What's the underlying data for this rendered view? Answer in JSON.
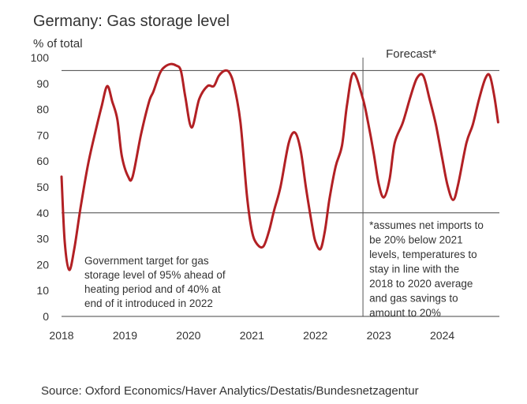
{
  "chart_data": {
    "type": "line",
    "title": "Germany: Gas storage level",
    "ylabel": "% of total",
    "ylim": [
      0,
      100
    ],
    "yticks": [
      0,
      10,
      20,
      30,
      40,
      50,
      60,
      70,
      80,
      90,
      100
    ],
    "xlim": [
      2018,
      2024.9
    ],
    "xtick_labels": [
      "2018",
      "2019",
      "2020",
      "2021",
      "2022",
      "2023",
      "2024"
    ],
    "reference_lines": [
      {
        "name": "target-95",
        "value": 95
      },
      {
        "name": "target-40",
        "value": 40
      }
    ],
    "forecast_start": 2022.75,
    "forecast_label": "Forecast*",
    "series": [
      {
        "name": "Gas storage level",
        "color": "#b22024",
        "x": [
          2018.0,
          2018.05,
          2018.12,
          2018.2,
          2018.3,
          2018.42,
          2018.55,
          2018.63,
          2018.72,
          2018.8,
          2018.88,
          2018.95,
          2019.05,
          2019.12,
          2019.25,
          2019.38,
          2019.45,
          2019.55,
          2019.63,
          2019.72,
          2019.8,
          2019.88,
          2019.95,
          2020.05,
          2020.17,
          2020.3,
          2020.4,
          2020.48,
          2020.58,
          2020.65,
          2020.72,
          2020.82,
          2020.92,
          2021.0,
          2021.08,
          2021.18,
          2021.27,
          2021.35,
          2021.45,
          2021.58,
          2021.68,
          2021.77,
          2021.85,
          2021.95,
          2022.0,
          2022.08,
          2022.15,
          2022.22,
          2022.32,
          2022.42,
          2022.5,
          2022.6,
          2022.75,
          2022.83,
          2022.92,
          2023.0,
          2023.08,
          2023.17,
          2023.25,
          2023.38,
          2023.5,
          2023.6,
          2023.7,
          2023.8,
          2023.9,
          2024.0,
          2024.08,
          2024.17,
          2024.25,
          2024.38,
          2024.48,
          2024.58,
          2024.68,
          2024.75,
          2024.82,
          2024.88
        ],
        "values": [
          54,
          29,
          18,
          26,
          42,
          59,
          73,
          81,
          89,
          83,
          76,
          62,
          54,
          54,
          70,
          83,
          87,
          94,
          96.5,
          97.5,
          97,
          95,
          85,
          73,
          84,
          89,
          89,
          93,
          95,
          94,
          89,
          75,
          47,
          33,
          28,
          27,
          33,
          41,
          50,
          67,
          71,
          64,
          50,
          35,
          29,
          26,
          33,
          45,
          58,
          66,
          82,
          94,
          84,
          75,
          63,
          51,
          46,
          53,
          67,
          75,
          85,
          92,
          93,
          84,
          74,
          61,
          51,
          45,
          51,
          67,
          74,
          84,
          92,
          93,
          85,
          75
        ]
      }
    ],
    "annotations": {
      "policy_note": [
        "Government target for gas",
        "storage level of 95% ahead of",
        "heating period and of 40% at",
        "end of it introduced in 2022"
      ],
      "forecast_note": [
        "*assumes net imports to",
        "be 20% below 2021",
        "levels, temperatures to",
        "stay in line with the",
        "2018 to 2020 average",
        "and gas savings to",
        "amount to 20%"
      ]
    },
    "source": "Source: Oxford Economics/Haver Analytics/Destatis/Bundesnetzagentur",
    "colors": {
      "line": "#b22024",
      "axis": "#444444",
      "reference": "#444444"
    }
  }
}
